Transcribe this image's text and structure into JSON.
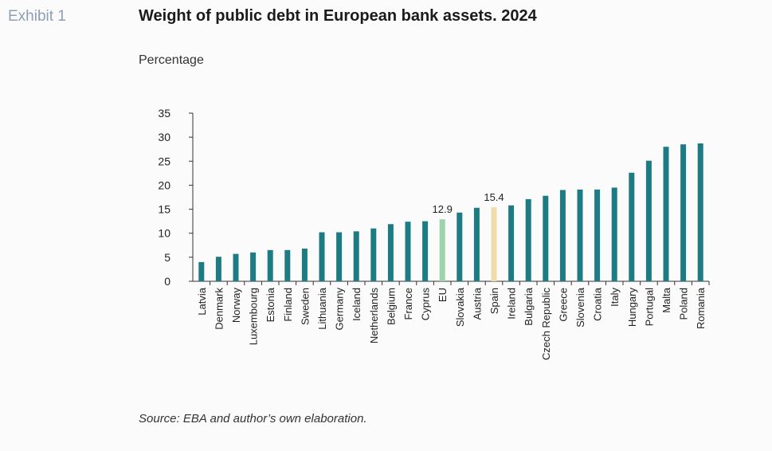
{
  "header": {
    "exhibit_label": "Exhibit 1",
    "title": "Weight of public debt in European bank assets. 2024",
    "subtitle": "Percentage"
  },
  "footer": {
    "source": "Source: EBA and author’s own elaboration."
  },
  "colors": {
    "bar": "#1d7b84",
    "eu_highlight": "#9dd3aa",
    "spain_highlight": "#efdcaa",
    "axis": "#333333"
  },
  "chart_data": {
    "type": "bar",
    "title": "Weight of public debt in European bank assets. 2024",
    "ylabel": "Percentage",
    "xlabel": "",
    "ylim": [
      0,
      35
    ],
    "yticks": [
      0,
      5,
      10,
      15,
      20,
      25,
      30,
      35
    ],
    "grid": false,
    "categories": [
      "Latvia",
      "Denmark",
      "Norway",
      "Luxembourg",
      "Estonia",
      "Finland",
      "Sweden",
      "Lithuania",
      "Germany",
      "Iceland",
      "Netherlands",
      "Belgium",
      "France",
      "Cyprus",
      "EU",
      "Slovakia",
      "Austria",
      "Spain",
      "Ireland",
      "Bulgaria",
      "Czech Republic",
      "Greece",
      "Slovenia",
      "Croatia",
      "Italy",
      "Hungary",
      "Portugal",
      "Malta",
      "Poland",
      "Romania"
    ],
    "values": [
      4.0,
      5.1,
      5.7,
      6.0,
      6.5,
      6.5,
      6.8,
      10.2,
      10.2,
      10.4,
      11.0,
      11.9,
      12.4,
      12.5,
      12.9,
      14.3,
      15.3,
      15.4,
      15.8,
      17.1,
      17.8,
      19.0,
      19.1,
      19.1,
      19.5,
      22.6,
      25.1,
      28.0,
      28.5,
      28.7
    ],
    "highlights": {
      "EU": "eu_highlight",
      "Spain": "spain_highlight"
    },
    "data_labels": [
      {
        "category": "EU",
        "text": "12.9"
      },
      {
        "category": "Spain",
        "text": "15.4"
      }
    ]
  }
}
